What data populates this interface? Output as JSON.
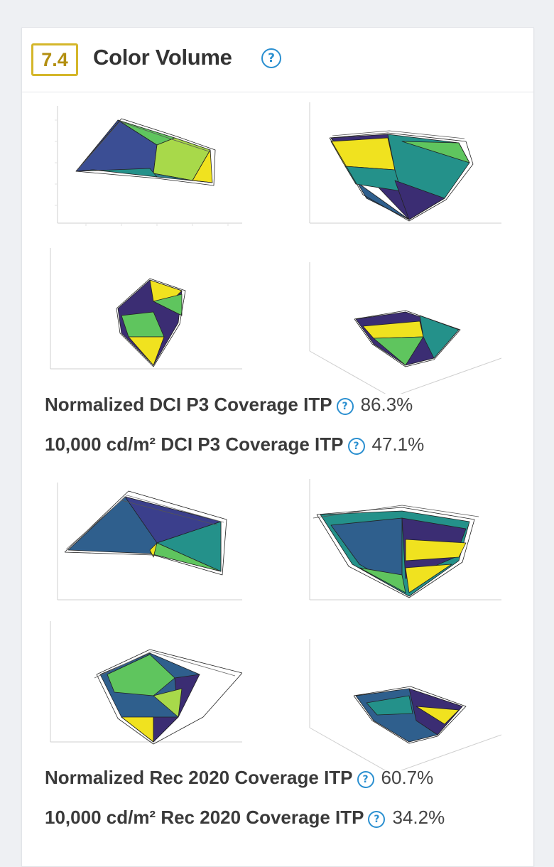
{
  "section": {
    "number": "7.4",
    "title": "Color Volume"
  },
  "metrics": [
    {
      "label": "Normalized DCI P3 Coverage ITP",
      "value": "86.3%"
    },
    {
      "label": "10,000 cd/m² DCI P3 Coverage ITP",
      "value": "47.1%"
    },
    {
      "label": "Normalized Rec 2020 Coverage ITP",
      "value": "60.7%"
    },
    {
      "label": "10,000 cd/m² Rec 2020 Coverage ITP",
      "value": "34.2%"
    }
  ],
  "colors": {
    "badge": "#d4b62a",
    "help": "#2a8fd0",
    "viridis_purple": "#3b2d73",
    "viridis_blue": "#2f5f8d",
    "viridis_teal": "#24918a",
    "viridis_green": "#5fc55e",
    "viridis_yellow": "#f0e21f"
  }
}
